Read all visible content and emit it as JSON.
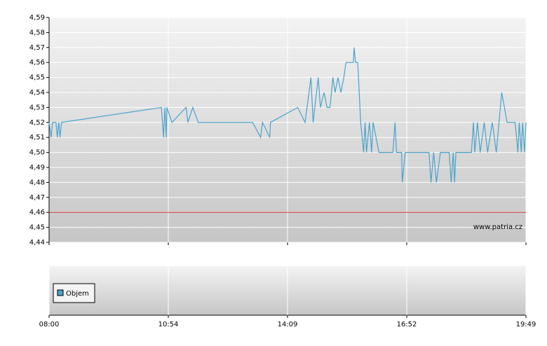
{
  "chart_data": {
    "type": "line",
    "x": [
      "08:00",
      "08:03",
      "08:05",
      "08:10",
      "08:12",
      "08:14",
      "08:16",
      "08:18",
      "10:44",
      "10:47",
      "10:49",
      "10:51",
      "10:52",
      "11:00",
      "11:23",
      "11:26",
      "11:34",
      "11:43",
      "13:12",
      "13:25",
      "13:28",
      "13:40",
      "13:41",
      "14:23",
      "14:33",
      "14:41",
      "14:44",
      "14:51",
      "14:54",
      "14:59",
      "15:03",
      "15:07",
      "15:11",
      "15:14",
      "15:18",
      "15:22",
      "15:26",
      "15:29",
      "15:39",
      "15:40",
      "15:42",
      "15:45",
      "15:47",
      "15:49",
      "15:53",
      "15:55",
      "15:57",
      "16:01",
      "16:04",
      "16:06",
      "16:14",
      "16:33",
      "16:36",
      "16:38",
      "16:45",
      "16:46",
      "16:50",
      "17:25",
      "17:28",
      "17:32",
      "17:36",
      "17:42",
      "17:55",
      "17:58",
      "18:01",
      "18:03",
      "18:05",
      "18:28",
      "18:31",
      "18:33",
      "18:37",
      "18:41",
      "18:47",
      "18:52",
      "18:59",
      "19:05",
      "19:13",
      "19:21",
      "19:33",
      "19:37",
      "19:39",
      "19:42",
      "19:44",
      "19:47",
      "19:49"
    ],
    "values": [
      4.52,
      4.51,
      4.52,
      4.52,
      4.51,
      4.52,
      4.51,
      4.52,
      4.53,
      4.51,
      4.53,
      4.51,
      4.53,
      4.52,
      4.53,
      4.52,
      4.53,
      4.52,
      4.52,
      4.51,
      4.52,
      4.51,
      4.52,
      4.53,
      4.52,
      4.55,
      4.52,
      4.55,
      4.53,
      4.54,
      4.53,
      4.53,
      4.55,
      4.54,
      4.55,
      4.54,
      4.55,
      4.56,
      4.56,
      4.57,
      4.56,
      4.56,
      4.54,
      4.52,
      4.5,
      4.52,
      4.5,
      4.52,
      4.5,
      4.52,
      4.5,
      4.5,
      4.52,
      4.5,
      4.5,
      4.48,
      4.5,
      4.5,
      4.48,
      4.5,
      4.48,
      4.5,
      4.5,
      4.48,
      4.5,
      4.48,
      4.5,
      4.5,
      4.52,
      4.5,
      4.52,
      4.5,
      4.52,
      4.5,
      4.52,
      4.5,
      4.54,
      4.52,
      4.52,
      4.5,
      4.52,
      4.5,
      4.52,
      4.5,
      4.52
    ],
    "color": "#4aa3cc",
    "ylim": [
      4.44,
      4.59
    ],
    "yticks": [
      {
        "value": 4.44,
        "label": "4,44"
      },
      {
        "value": 4.45,
        "label": "4,45"
      },
      {
        "value": 4.46,
        "label": "4,46"
      },
      {
        "value": 4.47,
        "label": "4,47"
      },
      {
        "value": 4.48,
        "label": "4,48"
      },
      {
        "value": 4.49,
        "label": "4,49"
      },
      {
        "value": 4.5,
        "label": "4,50"
      },
      {
        "value": 4.51,
        "label": "4,51"
      },
      {
        "value": 4.52,
        "label": "4,52"
      },
      {
        "value": 4.53,
        "label": "4,53"
      },
      {
        "value": 4.54,
        "label": "4,54"
      },
      {
        "value": 4.55,
        "label": "4,55"
      },
      {
        "value": 4.56,
        "label": "4,56"
      },
      {
        "value": 4.57,
        "label": "4,57"
      },
      {
        "value": 4.58,
        "label": "4,58"
      },
      {
        "value": 4.59,
        "label": "4,59"
      }
    ],
    "xticks": [
      "08:00",
      "10:54",
      "14:09",
      "16:52",
      "19:49"
    ],
    "hline": {
      "value": 4.46,
      "color": "#cc3333"
    },
    "grid": true,
    "watermark": "www.patria.cz",
    "volume_series": {
      "name": "Objem",
      "color": "#4aa3cc"
    }
  }
}
